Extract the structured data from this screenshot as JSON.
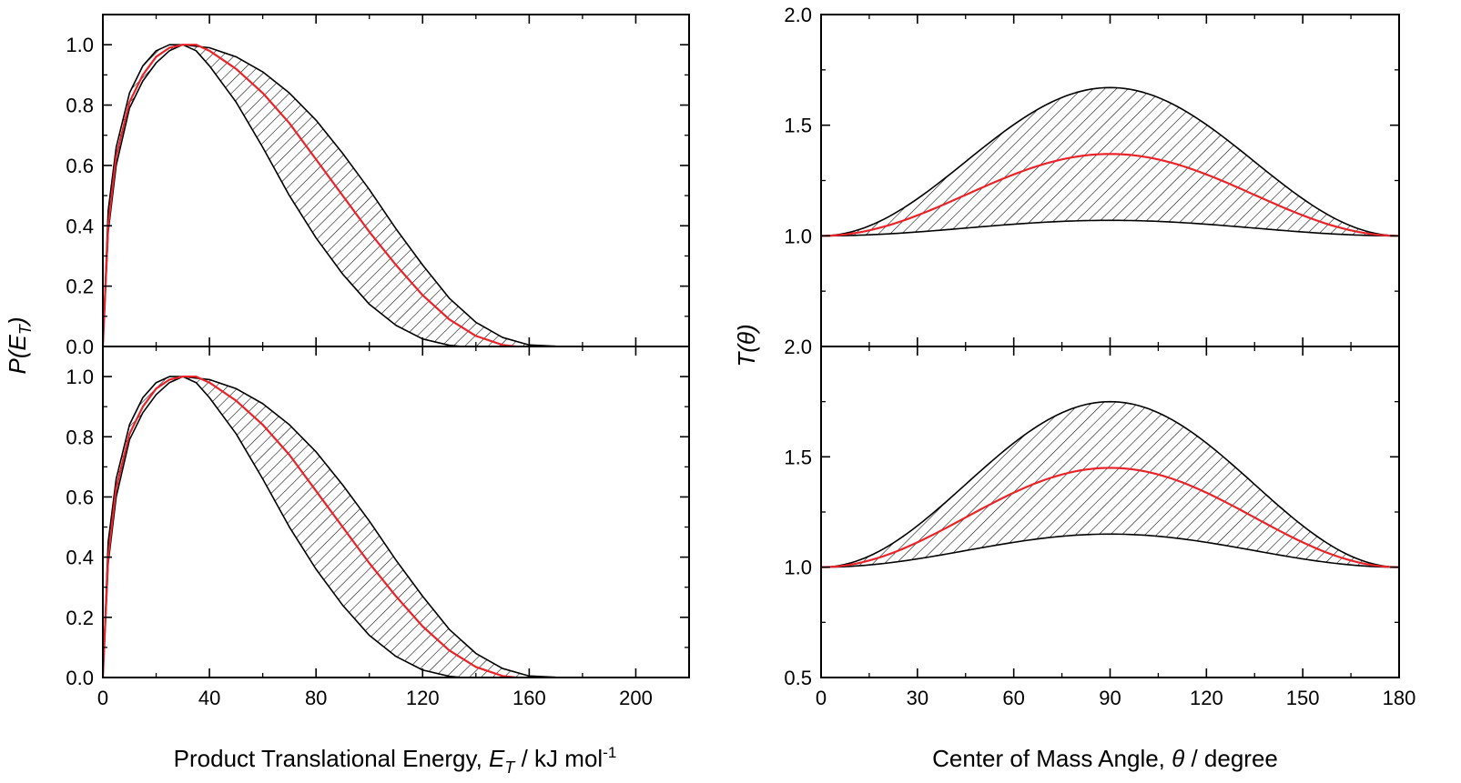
{
  "figure": {
    "left_ylabel": "P(E_T)",
    "left_ylabel_main": "P(E",
    "left_ylabel_sub": "T",
    "left_ylabel_close": ")",
    "left_xlabel_main": "Product Translational Energy, ",
    "left_xlabel_var": "E",
    "left_xlabel_sub": "T",
    "left_xlabel_unit": " / kJ mol",
    "left_xlabel_sup": "-1",
    "right_ylabel_main": "T(",
    "right_ylabel_theta": "θ",
    "right_ylabel_close": ")",
    "right_xlabel_main": "Center of Mass Angle, ",
    "right_xlabel_var": "θ",
    "right_xlabel_unit": " / degree"
  },
  "colors": {
    "best_fit": "#e8232a",
    "envelope": "#000000",
    "hatch": "#000000",
    "axes": "#000000"
  },
  "chart_data": [
    {
      "id": "pet-top",
      "type": "area",
      "xlim": [
        0,
        220
      ],
      "ylim": [
        0,
        1.1
      ],
      "yticks": [
        0.0,
        0.2,
        0.4,
        0.6,
        0.8,
        1.0
      ],
      "yticklabels": [
        "0.0",
        "0.2",
        "0.4",
        "0.6",
        "0.8",
        "1.0"
      ],
      "xticks": [],
      "xticklabels": [],
      "series": [
        {
          "role": "upper-envelope",
          "x": [
            0,
            2,
            5,
            10,
            15,
            20,
            25,
            30,
            40,
            50,
            60,
            70,
            80,
            90,
            100,
            110,
            120,
            130,
            140,
            150,
            160,
            170,
            178
          ],
          "y": [
            0,
            0.45,
            0.66,
            0.84,
            0.93,
            0.98,
            1.0,
            1.0,
            0.99,
            0.96,
            0.91,
            0.84,
            0.75,
            0.64,
            0.52,
            0.39,
            0.27,
            0.16,
            0.08,
            0.03,
            0.005,
            0.001,
            0
          ]
        },
        {
          "role": "lower-envelope",
          "x": [
            0,
            2,
            5,
            10,
            15,
            20,
            25,
            30,
            35,
            40,
            50,
            60,
            70,
            80,
            90,
            100,
            110,
            120,
            130,
            135
          ],
          "y": [
            0,
            0.38,
            0.6,
            0.79,
            0.88,
            0.94,
            0.98,
            1.0,
            0.98,
            0.93,
            0.81,
            0.66,
            0.5,
            0.36,
            0.24,
            0.14,
            0.07,
            0.025,
            0.004,
            0
          ]
        },
        {
          "role": "best-fit",
          "x": [
            0,
            2,
            5,
            10,
            15,
            20,
            25,
            30,
            35,
            40,
            50,
            60,
            70,
            80,
            90,
            100,
            110,
            120,
            130,
            140,
            150,
            155
          ],
          "y": [
            0,
            0.4,
            0.63,
            0.81,
            0.9,
            0.96,
            0.99,
            1.0,
            1.0,
            0.98,
            0.92,
            0.84,
            0.74,
            0.62,
            0.5,
            0.38,
            0.27,
            0.17,
            0.09,
            0.035,
            0.005,
            0
          ]
        }
      ]
    },
    {
      "id": "pet-bottom",
      "type": "area",
      "xlim": [
        0,
        220
      ],
      "ylim": [
        0,
        1.1
      ],
      "yticks": [
        0.0,
        0.2,
        0.4,
        0.6,
        0.8,
        1.0
      ],
      "yticklabels": [
        "0.0",
        "0.2",
        "0.4",
        "0.6",
        "0.8",
        "1.0"
      ],
      "xticks": [
        0,
        40,
        80,
        120,
        160,
        200
      ],
      "xticklabels": [
        "0",
        "40",
        "80",
        "120",
        "160",
        "200"
      ],
      "series": [
        {
          "role": "upper-envelope",
          "x": [
            0,
            2,
            5,
            10,
            15,
            20,
            25,
            30,
            40,
            50,
            60,
            70,
            80,
            90,
            100,
            110,
            120,
            130,
            140,
            150,
            160,
            170,
            178
          ],
          "y": [
            0,
            0.45,
            0.66,
            0.84,
            0.93,
            0.98,
            1.0,
            1.0,
            0.99,
            0.96,
            0.91,
            0.84,
            0.75,
            0.64,
            0.52,
            0.39,
            0.27,
            0.16,
            0.08,
            0.03,
            0.005,
            0.001,
            0
          ]
        },
        {
          "role": "lower-envelope",
          "x": [
            0,
            2,
            5,
            10,
            15,
            20,
            25,
            30,
            35,
            40,
            50,
            60,
            70,
            80,
            90,
            100,
            110,
            120,
            130,
            135
          ],
          "y": [
            0,
            0.38,
            0.6,
            0.79,
            0.88,
            0.94,
            0.98,
            1.0,
            0.98,
            0.93,
            0.81,
            0.66,
            0.5,
            0.36,
            0.24,
            0.14,
            0.07,
            0.025,
            0.004,
            0
          ]
        },
        {
          "role": "best-fit",
          "x": [
            0,
            2,
            5,
            10,
            15,
            20,
            25,
            30,
            35,
            40,
            50,
            60,
            70,
            80,
            90,
            100,
            110,
            120,
            130,
            140,
            150,
            155
          ],
          "y": [
            0,
            0.4,
            0.63,
            0.81,
            0.9,
            0.96,
            0.99,
            1.0,
            1.0,
            0.98,
            0.92,
            0.84,
            0.74,
            0.62,
            0.5,
            0.38,
            0.27,
            0.17,
            0.09,
            0.035,
            0.005,
            0
          ]
        }
      ]
    },
    {
      "id": "ttheta-top",
      "type": "area",
      "xlim": [
        0,
        180
      ],
      "ylim": [
        0.5,
        2.0
      ],
      "yticks": [
        1.0,
        1.5,
        2.0
      ],
      "yticklabels": [
        "1.0",
        "1.5",
        "2.0"
      ],
      "xticks": [],
      "xticklabels": [],
      "series": [
        {
          "role": "upper-envelope",
          "peak_x": 90,
          "peak_y": 1.67,
          "base_y": 1.0,
          "xrange": [
            0,
            180
          ]
        },
        {
          "role": "lower-envelope",
          "peak_x": 90,
          "peak_y": 1.07,
          "base_y": 1.0,
          "xrange": [
            0,
            180
          ]
        },
        {
          "role": "best-fit",
          "peak_x": 90,
          "peak_y": 1.37,
          "base_y": 1.0,
          "xrange": [
            0,
            180
          ]
        }
      ]
    },
    {
      "id": "ttheta-bottom",
      "type": "area",
      "xlim": [
        0,
        180
      ],
      "ylim": [
        0.5,
        2.0
      ],
      "yticks": [
        0.5,
        1.0,
        1.5,
        2.0
      ],
      "yticklabels": [
        "0.5",
        "1.0",
        "1.5",
        "2.0"
      ],
      "xticks": [
        0,
        30,
        60,
        90,
        120,
        150,
        180
      ],
      "xticklabels": [
        "0",
        "30",
        "60",
        "90",
        "120",
        "150",
        "180"
      ],
      "series": [
        {
          "role": "upper-envelope",
          "peak_x": 90,
          "peak_y": 1.75,
          "base_y": 1.0,
          "xrange": [
            0,
            180
          ]
        },
        {
          "role": "lower-envelope",
          "peak_x": 90,
          "peak_y": 1.15,
          "base_y": 1.0,
          "xrange": [
            0,
            180
          ]
        },
        {
          "role": "best-fit",
          "peak_x": 90,
          "peak_y": 1.45,
          "base_y": 1.0,
          "xrange": [
            0,
            180
          ]
        }
      ]
    }
  ]
}
